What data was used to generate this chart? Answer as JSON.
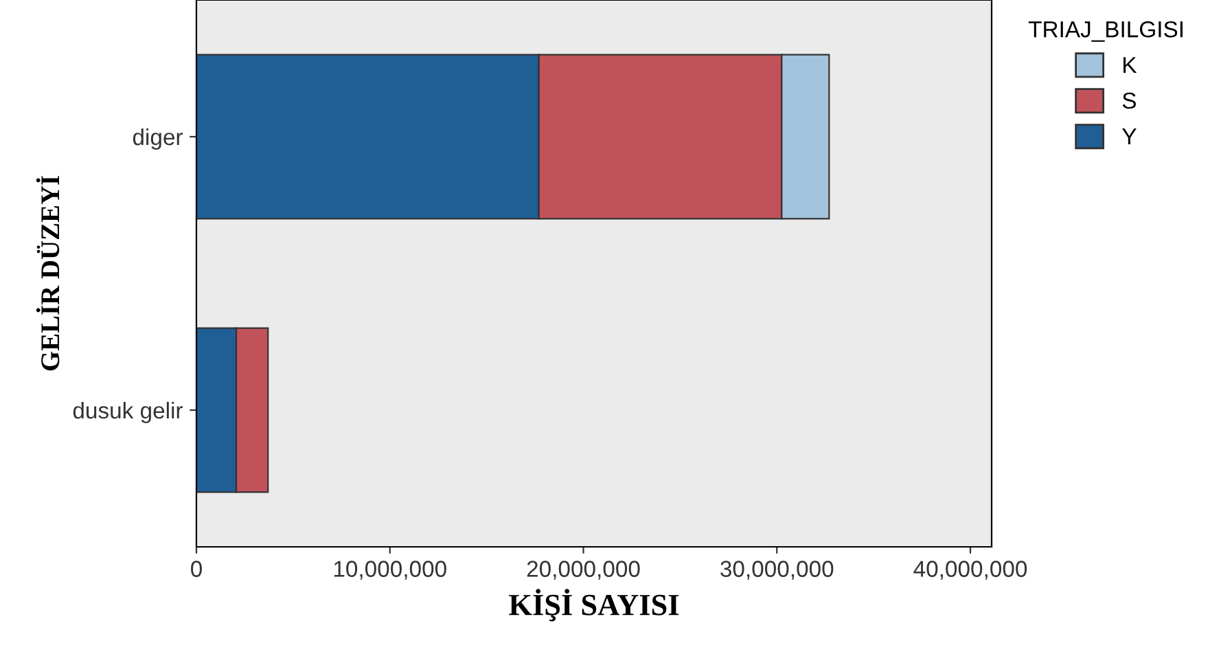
{
  "chart_data": {
    "type": "bar",
    "orientation": "horizontal",
    "stacked": true,
    "categories": [
      "diger",
      "dusuk gelir"
    ],
    "series": [
      {
        "name": "Y",
        "color": "#1f5f96",
        "values": [
          17700000,
          2060000
        ]
      },
      {
        "name": "S",
        "color": "#c2525a",
        "values": [
          12550000,
          1640000
        ]
      },
      {
        "name": "K",
        "color": "#a3c4dc",
        "values": [
          2450000,
          null
        ]
      }
    ],
    "xlabel": "KİŞİ SAYISI",
    "ylabel": "GELİR DÜZEYİ",
    "legend_title": "TRIAJ_BILGISI",
    "xlim": [
      0,
      41100000
    ],
    "xticks": [
      0,
      {
        "value": 10000000,
        "label": "10,000,000"
      },
      {
        "value": 20000000,
        "label": "20,000,000"
      },
      {
        "value": 30000000,
        "label": "30,000,000"
      },
      {
        "value": 40000000,
        "label": "40,000,000"
      }
    ],
    "legend": "top right",
    "grid": false
  }
}
